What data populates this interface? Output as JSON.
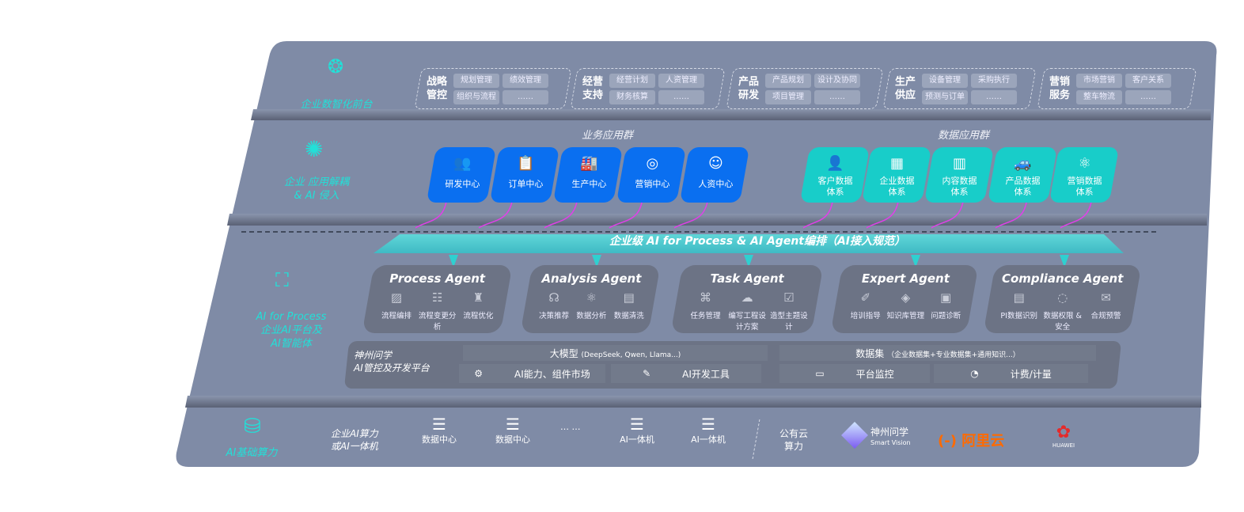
{
  "layers": {
    "front": "企业数智化前台",
    "app": [
      "企业 应用解耦",
      "& AI 侵入"
    ],
    "ai": [
      "AI for Process",
      "企业AI平台及",
      "AI智能体"
    ],
    "infra": "AI基础算力"
  },
  "front_groups": [
    {
      "title": [
        "战略",
        "管控"
      ],
      "tags": [
        "规划管理",
        "绩效管理",
        "组织与流程",
        "……"
      ]
    },
    {
      "title": [
        "经营",
        "支持"
      ],
      "tags": [
        "经营计划",
        "人资管理",
        "财务核算",
        "……"
      ]
    },
    {
      "title": [
        "产品",
        "研发"
      ],
      "tags": [
        "产品规划",
        "设计及协同",
        "项目管理",
        "……"
      ]
    },
    {
      "title": [
        "生产",
        "供应"
      ],
      "tags": [
        "设备管理",
        "采购执行",
        "预测与订单",
        "……"
      ]
    },
    {
      "title": [
        "营销",
        "服务"
      ],
      "tags": [
        "市场营销",
        "客户关系",
        "整车物流",
        "……"
      ]
    }
  ],
  "business_apps": {
    "title": "业务应用群",
    "items": [
      "研发中心",
      "订单中心",
      "生产中心",
      "营销中心",
      "人资中心"
    ]
  },
  "data_apps": {
    "title": "数据应用群",
    "items": [
      [
        "客户数据",
        "体系"
      ],
      [
        "企业数据",
        "体系"
      ],
      [
        "内容数据",
        "体系"
      ],
      [
        "产品数据",
        "体系"
      ],
      [
        "营销数据",
        "体系"
      ]
    ]
  },
  "banner": "企业级 AI for Process & AI Agent编排（AI接入规范）",
  "agents": [
    {
      "name": "Process Agent",
      "items": [
        "流程编排",
        "流程变更分析",
        "流程优化"
      ]
    },
    {
      "name": "Analysis Agent",
      "items": [
        "决策推荐",
        "数据分析",
        "数据清洗"
      ]
    },
    {
      "name": "Task Agent",
      "items": [
        "任务管理",
        "编写工程设计方案",
        "造型主题设计"
      ]
    },
    {
      "name": "Expert Agent",
      "items": [
        "培训指导",
        "知识库管理",
        "问题诊断"
      ]
    },
    {
      "name": "Compliance Agent",
      "items": [
        "PI数据识别",
        "数据权限 & 安全",
        "合规预警"
      ]
    }
  ],
  "platform": {
    "name": [
      "神州问学",
      "AI管控及开发平台"
    ],
    "model": "大模型",
    "model_note": "(DeepSeek, Qwen, Llama...)",
    "dataset": "数据集",
    "dataset_note": "（企业数据集+专业数据集+通用知识...）",
    "market": "AI能力、组件市场",
    "devtools": "AI开发工具",
    "monitor": "平台监控",
    "billing": "计费/计量"
  },
  "infra": {
    "enterprise": [
      "企业AI算力",
      "或AI一体机"
    ],
    "nodes": [
      "数据中心",
      "数据中心",
      "AI一体机",
      "AI一体机"
    ],
    "ellipsis": "… …",
    "public": [
      "公有云",
      "算力"
    ],
    "vendors": {
      "shenzhou": "神州问学",
      "shenzhou_sub": "Smart Vision",
      "aliyun": "阿里云",
      "huawei": "HUAWEI"
    }
  },
  "colors": {
    "panel": "#7f8ba6",
    "blue": "#0a6ff0",
    "teal": "#18cdc9",
    "accent": "#22e0d8",
    "arrow": "#e040e8",
    "aliyun": "#ff6a00",
    "huawei": "#e52a2a"
  }
}
